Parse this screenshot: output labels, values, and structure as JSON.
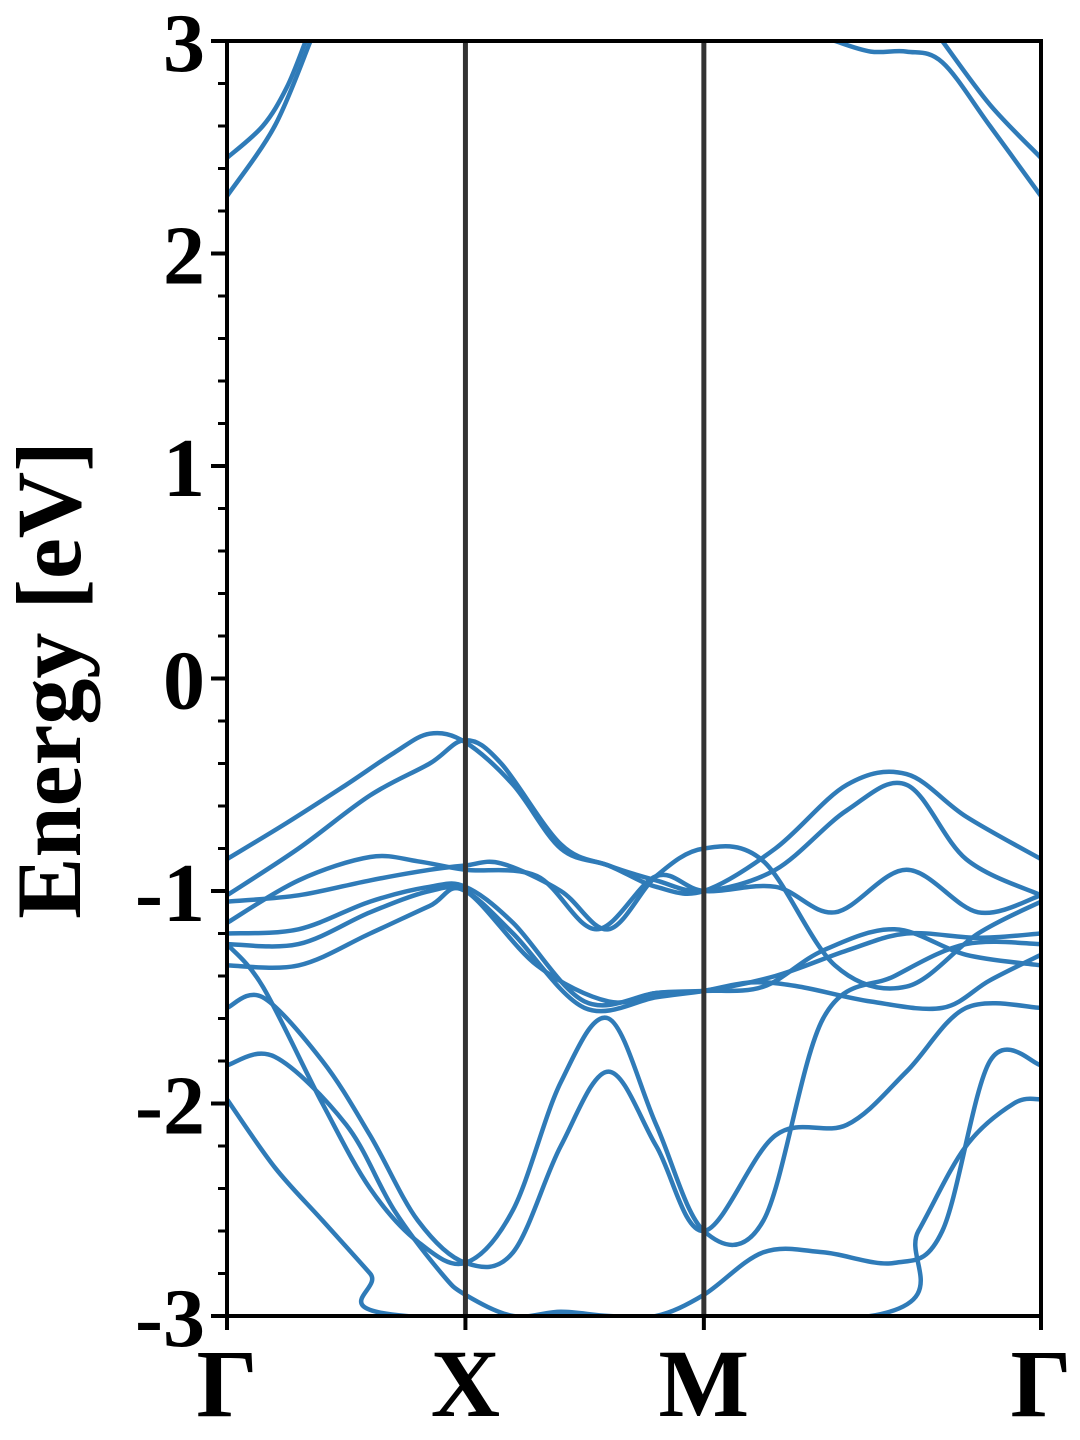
{
  "chart_data": {
    "type": "line",
    "title": "",
    "xlabel": "",
    "ylabel": "Energy [eV]",
    "ylim": [
      -3,
      3
    ],
    "yticks": [
      "-3",
      "-2",
      "-1",
      "0",
      "1",
      "2",
      "3"
    ],
    "y_minor_step": 0.2,
    "grid": false,
    "legend": "none",
    "kpath": [
      {
        "label": "Γ",
        "k": 0.0
      },
      {
        "label": "X",
        "k": 1.0
      },
      {
        "label": "M",
        "k": 2.0
      },
      {
        "label": "Γ",
        "k": 3.414
      }
    ],
    "vline_color": "#333333",
    "band_color": "#2f7bb8",
    "bands": [
      {
        "k": [
          0,
          0.25,
          0.5,
          0.7,
          0.85,
          1.0,
          1.2,
          1.4,
          1.6,
          1.8,
          2.0,
          2.3,
          2.6,
          2.85,
          3.1,
          3.414
        ],
        "e": [
          -0.85,
          -0.68,
          -0.5,
          -0.35,
          -0.26,
          -0.3,
          -0.5,
          -0.8,
          -0.88,
          -0.98,
          -1.0,
          -0.8,
          -0.5,
          -0.45,
          -0.65,
          -0.85
        ]
      },
      {
        "k": [
          0,
          0.3,
          0.6,
          0.85,
          1.0,
          1.15,
          1.4,
          1.6,
          1.8,
          2.0,
          2.3,
          2.6,
          2.85,
          3.1,
          3.414
        ],
        "e": [
          -1.02,
          -0.8,
          -0.55,
          -0.4,
          -0.29,
          -0.4,
          -0.78,
          -0.88,
          -0.95,
          -1.0,
          -0.9,
          -0.62,
          -0.5,
          -0.85,
          -1.02
        ]
      },
      {
        "k": [
          0,
          0.3,
          0.6,
          0.8,
          1.0,
          1.3,
          1.55,
          1.8,
          2.0,
          2.3,
          2.55,
          2.85,
          3.15,
          3.414
        ],
        "e": [
          -1.15,
          -0.95,
          -0.84,
          -0.86,
          -0.9,
          -0.93,
          -1.18,
          -0.93,
          -1.0,
          -0.98,
          -1.1,
          -0.9,
          -1.1,
          -1.02
        ]
      },
      {
        "k": [
          0,
          0.3,
          0.6,
          0.85,
          1.0,
          1.15,
          1.4,
          1.6,
          1.8,
          2.0,
          2.25,
          2.55,
          2.85,
          3.15,
          3.414
        ],
        "e": [
          -1.05,
          -1.02,
          -0.95,
          -0.9,
          -0.88,
          -0.87,
          -1.0,
          -1.18,
          -0.93,
          -0.8,
          -0.86,
          -1.35,
          -1.45,
          -1.2,
          -1.05
        ]
      },
      {
        "k": [
          0,
          0.3,
          0.6,
          0.85,
          1.0,
          1.2,
          1.5,
          1.8,
          2.0,
          2.3,
          2.6,
          2.85,
          3.15,
          3.414
        ],
        "e": [
          -1.2,
          -1.18,
          -1.05,
          -0.98,
          -0.98,
          -1.15,
          -1.52,
          -1.48,
          -1.47,
          -1.4,
          -1.28,
          -1.2,
          -1.22,
          -1.2
        ]
      },
      {
        "k": [
          0,
          0.3,
          0.6,
          0.85,
          1.0,
          1.2,
          1.5,
          1.8,
          2.0,
          2.2,
          2.4,
          2.7,
          3.0,
          3.2,
          3.414
        ],
        "e": [
          -1.25,
          -1.25,
          -1.1,
          -1.0,
          -1.0,
          -1.2,
          -1.55,
          -1.5,
          -1.47,
          -1.43,
          -1.45,
          -1.52,
          -1.55,
          -1.42,
          -1.3
        ]
      },
      {
        "k": [
          0,
          0.3,
          0.6,
          0.85,
          1.0,
          1.3,
          1.6,
          1.8,
          2.0,
          2.25,
          2.5,
          2.8,
          3.1,
          3.414
        ],
        "e": [
          -1.35,
          -1.35,
          -1.2,
          -1.07,
          -1.0,
          -1.35,
          -1.52,
          -1.48,
          -1.47,
          -1.45,
          -1.28,
          -1.18,
          -1.3,
          -1.35
        ]
      },
      {
        "k": [
          0,
          0.15,
          0.4,
          0.6,
          0.8,
          1.0,
          1.2,
          1.4,
          1.6,
          1.8,
          2.0,
          2.25,
          2.5,
          2.8,
          3.1,
          3.414
        ],
        "e": [
          -1.25,
          -1.45,
          -2.0,
          -2.4,
          -2.65,
          -2.75,
          -2.5,
          -1.9,
          -1.6,
          -2.1,
          -2.6,
          -2.55,
          -1.6,
          -1.4,
          -1.25,
          -1.25
        ]
      },
      {
        "k": [
          0,
          0.15,
          0.4,
          0.6,
          0.8,
          1.0,
          1.2,
          1.4,
          1.6,
          1.8,
          2.0,
          2.3,
          2.6,
          2.85,
          3.1,
          3.414
        ],
        "e": [
          -1.55,
          -1.5,
          -1.8,
          -2.15,
          -2.55,
          -2.75,
          -2.7,
          -2.2,
          -1.85,
          -2.2,
          -2.6,
          -2.15,
          -2.1,
          -1.85,
          -1.55,
          -1.55
        ]
      },
      {
        "k": [
          0,
          0.2,
          0.5,
          0.7,
          0.9,
          1.0,
          1.2,
          1.4,
          1.6,
          1.8,
          2.0,
          2.25,
          2.5,
          2.8,
          3.0,
          3.2,
          3.414
        ],
        "e": [
          -1.82,
          -1.78,
          -2.1,
          -2.5,
          -2.8,
          -2.9,
          -3.0,
          -2.98,
          -3.0,
          -3.0,
          -2.9,
          -2.7,
          -2.7,
          -2.75,
          -2.6,
          -1.8,
          -1.82
        ]
      },
      {
        "k": [
          0,
          0.2,
          0.4,
          0.6,
          0.75,
          2.7,
          2.9,
          3.1,
          3.3,
          3.414
        ],
        "e": [
          -1.98,
          -2.3,
          -2.55,
          -2.8,
          -3.0,
          -3.0,
          -2.6,
          -2.2,
          -2.0,
          -1.98
        ]
      },
      {
        "k": [
          0,
          0.2,
          0.35
        ],
        "e": [
          2.27,
          2.6,
          3.0
        ]
      },
      {
        "k": [
          0,
          0.15,
          0.25,
          0.33
        ],
        "e": [
          2.45,
          2.6,
          2.78,
          3.0
        ]
      },
      {
        "k": [
          2.55,
          2.7,
          2.85,
          3.0,
          3.2,
          3.414
        ],
        "e": [
          3.0,
          2.95,
          2.95,
          2.9,
          2.6,
          2.27
        ]
      },
      {
        "k": [
          3.0,
          3.2,
          3.414
        ],
        "e": [
          3.0,
          2.7,
          2.45
        ]
      }
    ]
  }
}
